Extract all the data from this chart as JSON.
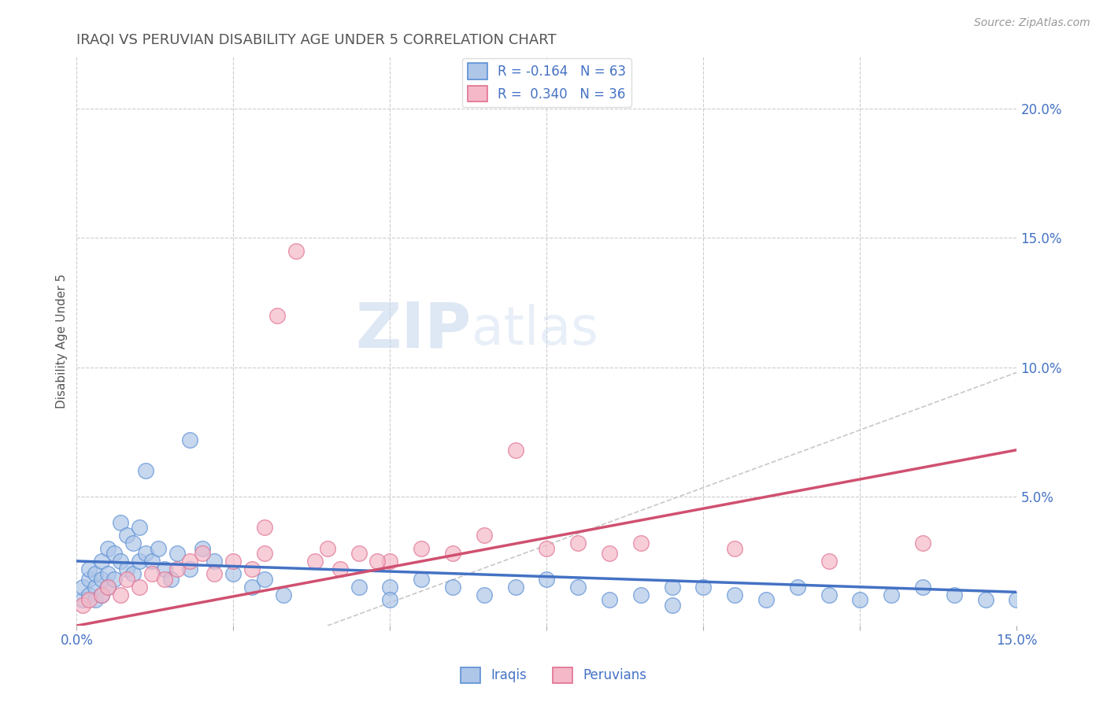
{
  "title": "IRAQI VS PERUVIAN DISABILITY AGE UNDER 5 CORRELATION CHART",
  "source": "Source: ZipAtlas.com",
  "ylabel": "Disability Age Under 5",
  "xlim": [
    0.0,
    0.15
  ],
  "ylim": [
    0.0,
    0.22
  ],
  "xticks": [
    0.0,
    0.025,
    0.05,
    0.075,
    0.1,
    0.125,
    0.15
  ],
  "ytick_labels_right": [
    "20.0%",
    "15.0%",
    "10.0%",
    "5.0%"
  ],
  "ytick_vals_right": [
    0.2,
    0.15,
    0.1,
    0.05
  ],
  "iraqis_R": -0.164,
  "iraqis_N": 63,
  "peruvians_R": 0.34,
  "peruvians_N": 36,
  "color_iraqi_fill": "#aec6e8",
  "color_iraqi_edge": "#5b8fd4",
  "color_peruvian_fill": "#f4b8c8",
  "color_peruvian_edge": "#e07090",
  "color_iraqi_line": "#4472c4",
  "color_peruvian_line": "#d05070",
  "color_text": "#4472c4",
  "color_title": "#555555",
  "background_color": "#ffffff",
  "grid_color": "#cccccc",
  "dashed_line_color": "#c8c8c8",
  "iraqi_x": [
    0.001,
    0.001,
    0.002,
    0.002,
    0.002,
    0.003,
    0.003,
    0.003,
    0.004,
    0.004,
    0.004,
    0.005,
    0.005,
    0.005,
    0.006,
    0.006,
    0.007,
    0.007,
    0.008,
    0.008,
    0.009,
    0.009,
    0.01,
    0.01,
    0.011,
    0.011,
    0.012,
    0.013,
    0.014,
    0.015,
    0.016,
    0.018,
    0.02,
    0.022,
    0.025,
    0.028,
    0.03,
    0.033,
    0.018,
    0.045,
    0.05,
    0.055,
    0.06,
    0.065,
    0.07,
    0.075,
    0.08,
    0.085,
    0.09,
    0.095,
    0.1,
    0.105,
    0.11,
    0.115,
    0.12,
    0.125,
    0.13,
    0.135,
    0.14,
    0.145,
    0.15,
    0.095,
    0.05
  ],
  "iraqi_y": [
    0.01,
    0.015,
    0.012,
    0.018,
    0.022,
    0.01,
    0.015,
    0.02,
    0.012,
    0.018,
    0.025,
    0.015,
    0.02,
    0.03,
    0.018,
    0.028,
    0.025,
    0.04,
    0.022,
    0.035,
    0.02,
    0.032,
    0.025,
    0.038,
    0.028,
    0.06,
    0.025,
    0.03,
    0.022,
    0.018,
    0.028,
    0.022,
    0.03,
    0.025,
    0.02,
    0.015,
    0.018,
    0.012,
    0.072,
    0.015,
    0.015,
    0.018,
    0.015,
    0.012,
    0.015,
    0.018,
    0.015,
    0.01,
    0.012,
    0.015,
    0.015,
    0.012,
    0.01,
    0.015,
    0.012,
    0.01,
    0.012,
    0.015,
    0.012,
    0.01,
    0.01,
    0.008,
    0.01
  ],
  "peruvian_x": [
    0.001,
    0.002,
    0.004,
    0.005,
    0.007,
    0.008,
    0.01,
    0.012,
    0.014,
    0.016,
    0.018,
    0.02,
    0.022,
    0.025,
    0.028,
    0.03,
    0.032,
    0.035,
    0.038,
    0.04,
    0.042,
    0.045,
    0.05,
    0.055,
    0.06,
    0.065,
    0.07,
    0.075,
    0.08,
    0.085,
    0.09,
    0.105,
    0.12,
    0.135,
    0.03,
    0.048
  ],
  "peruvian_y": [
    0.008,
    0.01,
    0.012,
    0.015,
    0.012,
    0.018,
    0.015,
    0.02,
    0.018,
    0.022,
    0.025,
    0.028,
    0.02,
    0.025,
    0.022,
    0.028,
    0.12,
    0.145,
    0.025,
    0.03,
    0.022,
    0.028,
    0.025,
    0.03,
    0.028,
    0.035,
    0.068,
    0.03,
    0.032,
    0.028,
    0.032,
    0.03,
    0.025,
    0.032,
    0.038,
    0.025
  ],
  "iraqi_line_x0": 0.0,
  "iraqi_line_x1": 0.15,
  "iraqi_line_y0": 0.025,
  "iraqi_line_y1": 0.013,
  "peruvian_line_x0": 0.0,
  "peruvian_line_x1": 0.15,
  "peruvian_line_y0": 0.0,
  "peruvian_line_y1": 0.068,
  "dashed_line_x0": 0.04,
  "dashed_line_x1": 0.15,
  "dashed_line_y0": 0.0,
  "dashed_line_y1": 0.098
}
